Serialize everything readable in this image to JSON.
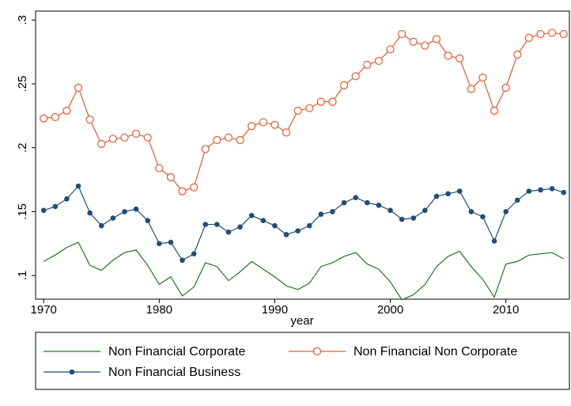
{
  "chart_data": {
    "type": "line",
    "xlabel": "year",
    "x": [
      1970,
      1971,
      1972,
      1973,
      1974,
      1975,
      1976,
      1977,
      1978,
      1979,
      1980,
      1981,
      1982,
      1983,
      1984,
      1985,
      1986,
      1987,
      1988,
      1989,
      1990,
      1991,
      1992,
      1993,
      1994,
      1995,
      1996,
      1997,
      1998,
      1999,
      2000,
      2001,
      2002,
      2003,
      2004,
      2005,
      2006,
      2007,
      2008,
      2009,
      2010,
      2011,
      2012,
      2013,
      2014,
      2015
    ],
    "series": [
      {
        "name": "Non Financial Corporate",
        "color": "#1a7a1a",
        "marker": "none",
        "values": [
          0.111,
          0.116,
          0.122,
          0.126,
          0.108,
          0.104,
          0.112,
          0.118,
          0.12,
          0.108,
          0.093,
          0.099,
          0.084,
          0.091,
          0.11,
          0.107,
          0.096,
          0.103,
          0.111,
          0.105,
          0.099,
          0.092,
          0.089,
          0.094,
          0.107,
          0.11,
          0.115,
          0.118,
          0.109,
          0.105,
          0.095,
          0.081,
          0.085,
          0.093,
          0.107,
          0.115,
          0.119,
          0.107,
          0.097,
          0.083,
          0.109,
          0.111,
          0.116,
          0.117,
          0.118,
          0.113
        ]
      },
      {
        "name": "Non Financial Non Corporate",
        "color": "#f0562a",
        "marker": "hollow-circle",
        "values": [
          0.223,
          0.224,
          0.229,
          0.247,
          0.222,
          0.203,
          0.207,
          0.208,
          0.211,
          0.208,
          0.184,
          0.177,
          0.166,
          0.169,
          0.199,
          0.206,
          0.208,
          0.206,
          0.217,
          0.22,
          0.218,
          0.212,
          0.229,
          0.231,
          0.236,
          0.236,
          0.249,
          0.256,
          0.265,
          0.268,
          0.277,
          0.289,
          0.283,
          0.28,
          0.285,
          0.272,
          0.27,
          0.246,
          0.255,
          0.229,
          0.247,
          0.273,
          0.286,
          0.289,
          0.29,
          0.289
        ]
      },
      {
        "name": "Non Financial Business",
        "color": "#1f4e79",
        "marker": "filled-circle",
        "values": [
          0.151,
          0.154,
          0.16,
          0.17,
          0.149,
          0.139,
          0.145,
          0.15,
          0.152,
          0.143,
          0.125,
          0.126,
          0.112,
          0.117,
          0.14,
          0.14,
          0.134,
          0.138,
          0.147,
          0.143,
          0.139,
          0.132,
          0.135,
          0.139,
          0.148,
          0.15,
          0.157,
          0.161,
          0.157,
          0.155,
          0.151,
          0.144,
          0.145,
          0.151,
          0.162,
          0.164,
          0.166,
          0.15,
          0.146,
          0.127,
          0.15,
          0.159,
          0.166,
          0.167,
          0.168,
          0.165
        ]
      }
    ],
    "xlim": [
      1969.3,
      2015.5
    ],
    "ylim": [
      0.0815,
      0.307
    ],
    "xticks": [
      1970,
      1980,
      1990,
      2000,
      2010
    ],
    "yticks": [
      {
        "value": 0.1,
        "label": ".1"
      },
      {
        "value": 0.15,
        "label": ".15"
      },
      {
        "value": 0.2,
        "label": ".2"
      },
      {
        "value": 0.25,
        "label": ".25"
      },
      {
        "value": 0.3,
        "label": ".3"
      }
    ],
    "grid": false,
    "legend": "bottom"
  }
}
